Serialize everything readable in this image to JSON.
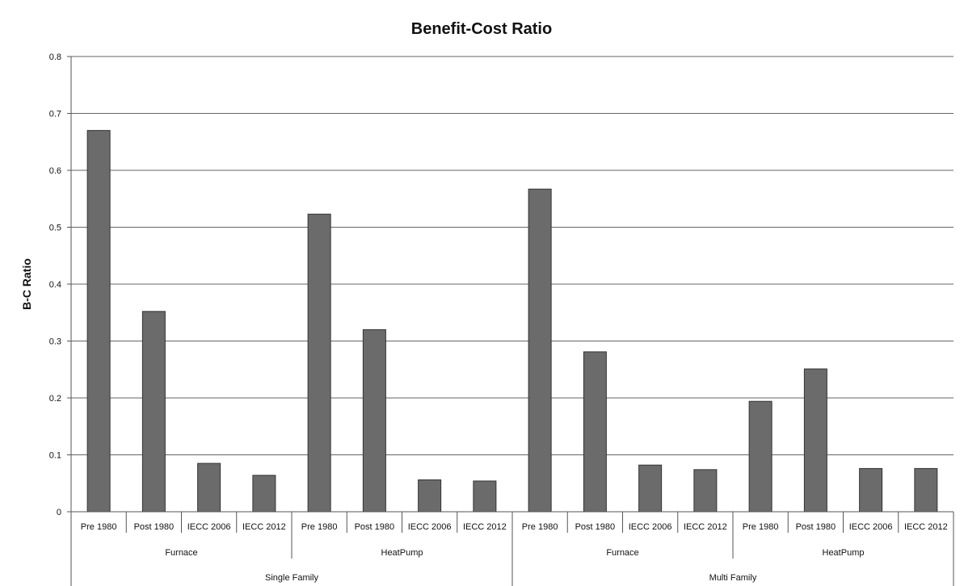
{
  "chart_data": {
    "type": "bar",
    "title": "Benefit-Cost Ratio",
    "xlabel": "",
    "ylabel": "B-C Ratio",
    "ylim": [
      0,
      0.8
    ],
    "yticks": [
      "0",
      "0.1",
      "0.2",
      "0.3",
      "0.4",
      "0.5",
      "0.6",
      "0.7",
      "0.8"
    ],
    "grid": true,
    "legend": "none",
    "bar_color": "#6b6b6b",
    "categories": [
      "Pre 1980",
      "Post 1980",
      "IECC 2006",
      "IECC 2012",
      "Pre 1980",
      "Post 1980",
      "IECC 2006",
      "IECC 2012",
      "Pre 1980",
      "Post 1980",
      "IECC 2006",
      "IECC 2012",
      "Pre 1980",
      "Post 1980",
      "IECC 2006",
      "IECC 2012"
    ],
    "values": [
      0.67,
      0.352,
      0.085,
      0.064,
      0.523,
      0.32,
      0.056,
      0.054,
      0.567,
      0.281,
      0.082,
      0.074,
      0.194,
      0.251,
      0.076,
      0.076
    ],
    "groups_level2": [
      "Furnace",
      "HeatPump",
      "Furnace",
      "HeatPump"
    ],
    "groups_level1": [
      "Single Family",
      "Multi Family"
    ]
  }
}
